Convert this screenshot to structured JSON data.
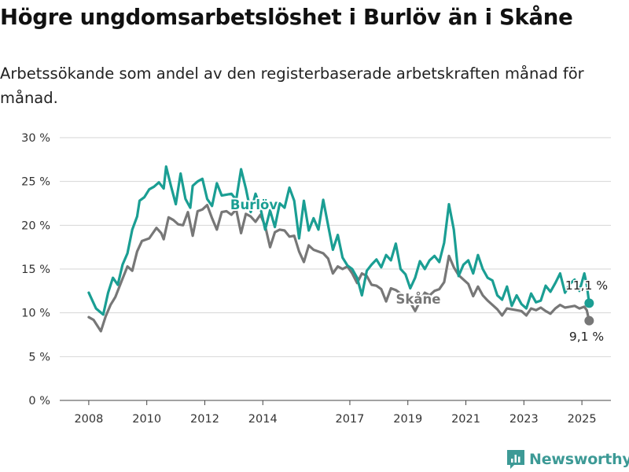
{
  "title": "Högre ungdomsarbetslöshet i Burlöv än i Skåne",
  "subtitle": "Arbetssökande som andel av den registerbaserade arbetskraften månad för månad.",
  "brand": {
    "name": "Newsworthy",
    "color": "#3d9a96"
  },
  "chart_data": {
    "type": "line",
    "x_ticks": [
      "2008",
      "2010",
      "2012",
      "2014",
      "2017",
      "2019",
      "2021",
      "2023",
      "2025"
    ],
    "y_ticks": [
      "0 %",
      "5 %",
      "10 %",
      "15 %",
      "20 %",
      "25 %",
      "30 %"
    ],
    "ylim": [
      0,
      30
    ],
    "xlim": [
      "2007-01",
      "2026-01"
    ],
    "grid": true,
    "series": [
      {
        "name": "Burlöv",
        "color": "#1a9e93",
        "end_label": "11,1 %",
        "points": [
          [
            "2008-01",
            12.3
          ],
          [
            "2008-04",
            10.5
          ],
          [
            "2008-07",
            9.8
          ],
          [
            "2008-09",
            12.3
          ],
          [
            "2008-11",
            14.0
          ],
          [
            "2009-01",
            13.2
          ],
          [
            "2009-03",
            15.5
          ],
          [
            "2009-05",
            16.8
          ],
          [
            "2009-07",
            19.5
          ],
          [
            "2009-09",
            21.0
          ],
          [
            "2009-10",
            22.8
          ],
          [
            "2009-12",
            23.2
          ],
          [
            "2010-02",
            24.1
          ],
          [
            "2010-04",
            24.4
          ],
          [
            "2010-06",
            24.9
          ],
          [
            "2010-08",
            24.2
          ],
          [
            "2010-09",
            26.7
          ],
          [
            "2010-11",
            24.5
          ],
          [
            "2011-01",
            22.4
          ],
          [
            "2011-03",
            25.9
          ],
          [
            "2011-05",
            23.0
          ],
          [
            "2011-07",
            22.0
          ],
          [
            "2011-08",
            24.5
          ],
          [
            "2011-10",
            25.0
          ],
          [
            "2011-12",
            25.3
          ],
          [
            "2012-02",
            23.0
          ],
          [
            "2012-04",
            22.2
          ],
          [
            "2012-06",
            24.8
          ],
          [
            "2012-08",
            23.4
          ],
          [
            "2012-10",
            23.5
          ],
          [
            "2012-12",
            23.6
          ],
          [
            "2013-02",
            22.9
          ],
          [
            "2013-04",
            26.4
          ],
          [
            "2013-06",
            24.2
          ],
          [
            "2013-08",
            21.5
          ],
          [
            "2013-10",
            23.6
          ],
          [
            "2013-12",
            22.0
          ],
          [
            "2014-02",
            19.5
          ],
          [
            "2014-04",
            21.7
          ],
          [
            "2014-06",
            19.8
          ],
          [
            "2014-08",
            22.5
          ],
          [
            "2014-10",
            22.0
          ],
          [
            "2014-12",
            24.3
          ],
          [
            "2015-02",
            22.8
          ],
          [
            "2015-04",
            18.5
          ],
          [
            "2015-06",
            22.8
          ],
          [
            "2015-08",
            19.4
          ],
          [
            "2015-10",
            20.8
          ],
          [
            "2015-12",
            19.5
          ],
          [
            "2016-02",
            22.9
          ],
          [
            "2016-04",
            20.0
          ],
          [
            "2016-06",
            17.2
          ],
          [
            "2016-08",
            18.9
          ],
          [
            "2016-10",
            16.3
          ],
          [
            "2016-12",
            15.4
          ],
          [
            "2017-02",
            15.0
          ],
          [
            "2017-04",
            14.0
          ],
          [
            "2017-06",
            12.0
          ],
          [
            "2017-08",
            14.8
          ],
          [
            "2017-10",
            15.5
          ],
          [
            "2017-12",
            16.1
          ],
          [
            "2018-02",
            15.2
          ],
          [
            "2018-04",
            16.6
          ],
          [
            "2018-06",
            16.0
          ],
          [
            "2018-08",
            17.9
          ],
          [
            "2018-10",
            15.0
          ],
          [
            "2018-12",
            14.4
          ],
          [
            "2019-02",
            12.8
          ],
          [
            "2019-04",
            14.0
          ],
          [
            "2019-06",
            15.9
          ],
          [
            "2019-08",
            15.0
          ],
          [
            "2019-10",
            16.0
          ],
          [
            "2019-12",
            16.5
          ],
          [
            "2020-02",
            15.8
          ],
          [
            "2020-04",
            18.0
          ],
          [
            "2020-06",
            22.4
          ],
          [
            "2020-08",
            19.5
          ],
          [
            "2020-10",
            14.2
          ],
          [
            "2020-12",
            15.5
          ],
          [
            "2021-02",
            16.0
          ],
          [
            "2021-04",
            14.5
          ],
          [
            "2021-06",
            16.6
          ],
          [
            "2021-08",
            15.0
          ],
          [
            "2021-10",
            14.0
          ],
          [
            "2021-12",
            13.7
          ],
          [
            "2022-02",
            12.0
          ],
          [
            "2022-04",
            11.5
          ],
          [
            "2022-06",
            13.0
          ],
          [
            "2022-08",
            10.8
          ],
          [
            "2022-10",
            12.0
          ],
          [
            "2022-12",
            11.0
          ],
          [
            "2023-02",
            10.5
          ],
          [
            "2023-04",
            12.2
          ],
          [
            "2023-06",
            11.2
          ],
          [
            "2023-08",
            11.4
          ],
          [
            "2023-10",
            13.1
          ],
          [
            "2023-12",
            12.4
          ],
          [
            "2024-02",
            13.4
          ],
          [
            "2024-04",
            14.5
          ],
          [
            "2024-06",
            12.3
          ],
          [
            "2024-08",
            13.3
          ],
          [
            "2024-10",
            13.8
          ],
          [
            "2024-12",
            12.5
          ],
          [
            "2025-02",
            14.5
          ],
          [
            "2025-03",
            13.2
          ],
          [
            "2025-04",
            11.1
          ]
        ]
      },
      {
        "name": "Skåne",
        "color": "#777777",
        "end_label": "9,1 %",
        "points": [
          [
            "2008-01",
            9.5
          ],
          [
            "2008-03",
            9.2
          ],
          [
            "2008-06",
            7.9
          ],
          [
            "2008-08",
            9.6
          ],
          [
            "2008-10",
            10.9
          ],
          [
            "2008-12",
            11.8
          ],
          [
            "2009-03",
            13.9
          ],
          [
            "2009-05",
            15.3
          ],
          [
            "2009-07",
            14.8
          ],
          [
            "2009-09",
            17.0
          ],
          [
            "2009-11",
            18.2
          ],
          [
            "2010-02",
            18.5
          ],
          [
            "2010-05",
            19.7
          ],
          [
            "2010-07",
            19.1
          ],
          [
            "2010-08",
            18.4
          ],
          [
            "2010-10",
            20.9
          ],
          [
            "2010-12",
            20.6
          ],
          [
            "2011-02",
            20.1
          ],
          [
            "2011-04",
            20.0
          ],
          [
            "2011-06",
            21.5
          ],
          [
            "2011-08",
            18.8
          ],
          [
            "2011-10",
            21.6
          ],
          [
            "2011-12",
            21.8
          ],
          [
            "2012-02",
            22.3
          ],
          [
            "2012-04",
            20.8
          ],
          [
            "2012-06",
            19.5
          ],
          [
            "2012-08",
            21.5
          ],
          [
            "2012-10",
            21.6
          ],
          [
            "2012-12",
            21.2
          ],
          [
            "2013-02",
            21.8
          ],
          [
            "2013-04",
            19.1
          ],
          [
            "2013-06",
            21.3
          ],
          [
            "2013-08",
            21.0
          ],
          [
            "2013-10",
            20.4
          ],
          [
            "2013-12",
            21.2
          ],
          [
            "2014-02",
            19.9
          ],
          [
            "2014-04",
            17.5
          ],
          [
            "2014-06",
            19.2
          ],
          [
            "2014-08",
            19.5
          ],
          [
            "2014-10",
            19.4
          ],
          [
            "2014-12",
            18.7
          ],
          [
            "2015-02",
            18.8
          ],
          [
            "2015-04",
            17.0
          ],
          [
            "2015-06",
            15.8
          ],
          [
            "2015-08",
            17.7
          ],
          [
            "2015-10",
            17.2
          ],
          [
            "2015-12",
            17.0
          ],
          [
            "2016-02",
            16.8
          ],
          [
            "2016-04",
            16.2
          ],
          [
            "2016-06",
            14.5
          ],
          [
            "2016-08",
            15.3
          ],
          [
            "2016-10",
            15.0
          ],
          [
            "2016-12",
            15.3
          ],
          [
            "2017-02",
            14.5
          ],
          [
            "2017-04",
            13.4
          ],
          [
            "2017-06",
            14.5
          ],
          [
            "2017-08",
            14.2
          ],
          [
            "2017-10",
            13.2
          ],
          [
            "2017-12",
            13.1
          ],
          [
            "2018-02",
            12.7
          ],
          [
            "2018-04",
            11.3
          ],
          [
            "2018-06",
            12.8
          ],
          [
            "2018-08",
            12.6
          ],
          [
            "2018-10",
            12.2
          ],
          [
            "2018-12",
            11.7
          ],
          [
            "2019-02",
            11.2
          ],
          [
            "2019-04",
            10.2
          ],
          [
            "2019-06",
            11.3
          ],
          [
            "2019-08",
            12.3
          ],
          [
            "2019-10",
            12.0
          ],
          [
            "2019-12",
            12.5
          ],
          [
            "2020-02",
            12.7
          ],
          [
            "2020-04",
            13.5
          ],
          [
            "2020-06",
            16.5
          ],
          [
            "2020-08",
            15.2
          ],
          [
            "2020-10",
            14.3
          ],
          [
            "2020-12",
            13.8
          ],
          [
            "2021-02",
            13.3
          ],
          [
            "2021-04",
            11.9
          ],
          [
            "2021-06",
            13.0
          ],
          [
            "2021-08",
            12.0
          ],
          [
            "2021-10",
            11.4
          ],
          [
            "2021-12",
            10.9
          ],
          [
            "2022-02",
            10.4
          ],
          [
            "2022-04",
            9.7
          ],
          [
            "2022-06",
            10.5
          ],
          [
            "2022-08",
            10.4
          ],
          [
            "2022-10",
            10.3
          ],
          [
            "2022-12",
            10.2
          ],
          [
            "2023-02",
            9.7
          ],
          [
            "2023-04",
            10.5
          ],
          [
            "2023-06",
            10.3
          ],
          [
            "2023-08",
            10.6
          ],
          [
            "2023-10",
            10.2
          ],
          [
            "2023-12",
            9.9
          ],
          [
            "2024-02",
            10.5
          ],
          [
            "2024-04",
            10.9
          ],
          [
            "2024-06",
            10.6
          ],
          [
            "2024-08",
            10.7
          ],
          [
            "2024-10",
            10.8
          ],
          [
            "2024-12",
            10.5
          ],
          [
            "2025-02",
            10.7
          ],
          [
            "2025-03",
            10.3
          ],
          [
            "2025-04",
            9.1
          ]
        ]
      }
    ]
  }
}
